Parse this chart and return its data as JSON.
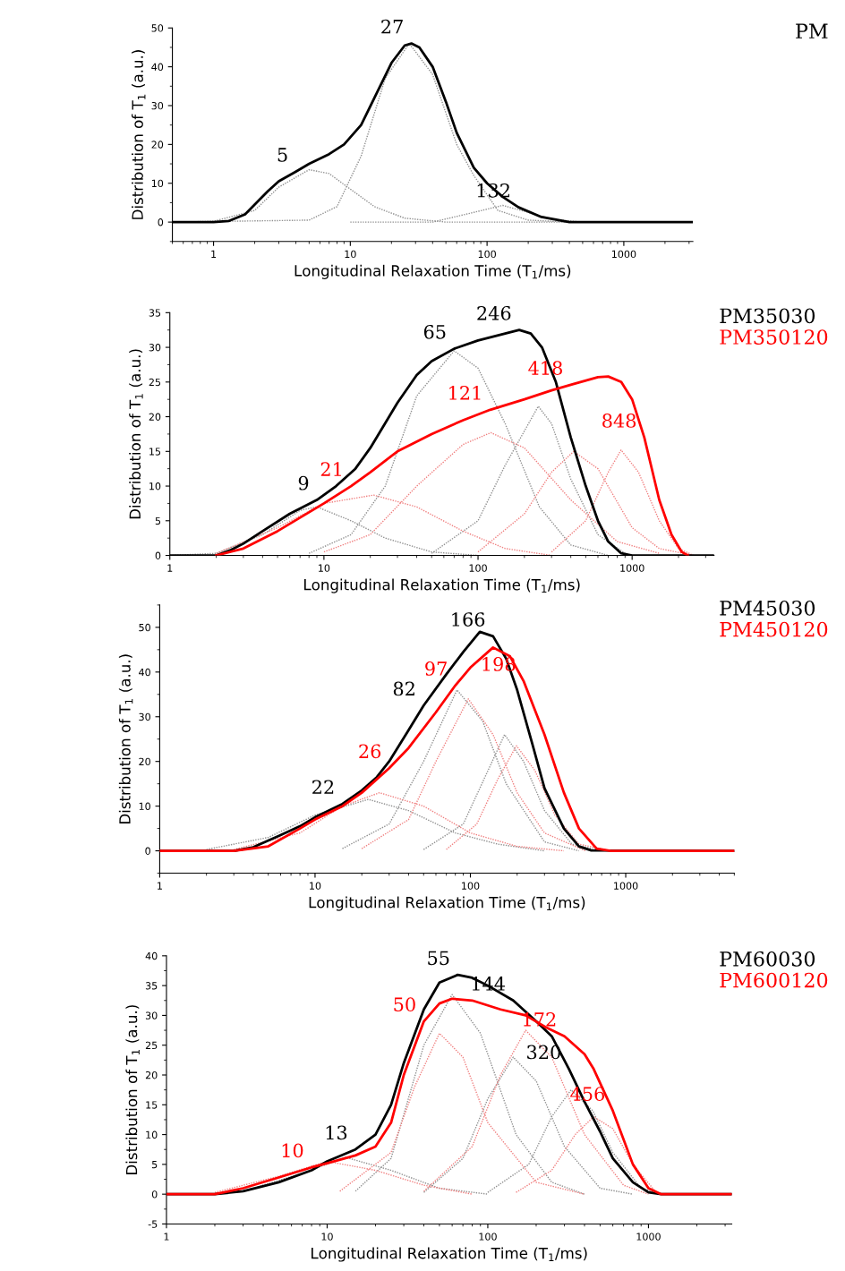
{
  "chart_data": [
    {
      "type": "line",
      "log": "x",
      "xlabel": "Longitudinal Relaxation Time (T$_{1}$/ms)",
      "ylabel": "Distribution of T$_{1}$ (a.u.)",
      "xlim": [
        0.5,
        3200
      ],
      "ylim": [
        -5,
        50
      ],
      "xticks": [
        1,
        10,
        100,
        1000
      ],
      "yticks": [
        0,
        10,
        20,
        30,
        40,
        50
      ],
      "legend": "top right",
      "series": [
        {
          "name": "PM",
          "color": "#000000",
          "line_style": "solid",
          "x": [
            0.5,
            1,
            1.3,
            1.7,
            2,
            2.5,
            3,
            4,
            5,
            7,
            9,
            12,
            15,
            20,
            25,
            28,
            32,
            40,
            50,
            60,
            80,
            100,
            130,
            170,
            250,
            400,
            3200
          ],
          "values": [
            0,
            0,
            0.3,
            2,
            4.5,
            8,
            10.5,
            13,
            15,
            17.5,
            20,
            25,
            32,
            41,
            45.5,
            46,
            45,
            40,
            31,
            23,
            14,
            10,
            6.5,
            3.8,
            1.3,
            0,
            0
          ]
        },
        {
          "color": "#909090",
          "line_style": "dotted",
          "x": [
            0.5,
            1,
            2,
            3,
            5,
            7,
            10,
            15,
            25,
            50,
            400
          ],
          "values": [
            0,
            0.2,
            3,
            9,
            13.5,
            12.5,
            8.5,
            4,
            1,
            0,
            0
          ]
        },
        {
          "color": "#909090",
          "line_style": "dotted",
          "x": [
            0.5,
            5,
            8,
            12,
            18,
            27,
            40,
            60,
            80,
            120,
            200,
            400
          ],
          "values": [
            0,
            0.5,
            4,
            17,
            37,
            46,
            38,
            20,
            12,
            3,
            0.5,
            0
          ]
        },
        {
          "color": "#909090",
          "line_style": "dotted",
          "x": [
            10,
            40,
            80,
            130,
            200,
            300,
            500
          ],
          "values": [
            0,
            0,
            2.5,
            4.3,
            2.5,
            0.7,
            0
          ]
        }
      ],
      "annotations": [
        {
          "text": "5",
          "x": 4,
          "y": 13
        },
        {
          "text": "27",
          "x": 28,
          "y": 46
        },
        {
          "text": "132",
          "x": 170,
          "y": 3.8
        }
      ]
    },
    {
      "type": "line",
      "log": "x",
      "xlabel": "Longitudinal Relaxation Time (T$_{1}$/ms)",
      "ylabel": "Distribution of T$_{1}$ (a.u.)",
      "xlim": [
        1,
        3400
      ],
      "ylim": [
        0,
        35
      ],
      "xticks": [
        1,
        10,
        100,
        1000
      ],
      "yticks": [
        0,
        5,
        10,
        15,
        20,
        25,
        30,
        35
      ],
      "legend": "top right",
      "series": [
        {
          "name": "PM35030",
          "color": "#000000",
          "line_style": "solid",
          "x": [
            1,
            2,
            2.5,
            3,
            4,
            6,
            9,
            12,
            16,
            20,
            30,
            40,
            50,
            70,
            100,
            150,
            185,
            220,
            260,
            320,
            400,
            500,
            600,
            700,
            850,
            1000,
            3400
          ],
          "values": [
            0,
            0,
            0.8,
            1.7,
            3.5,
            6,
            8,
            10,
            12.5,
            15.5,
            22,
            26,
            28,
            29.8,
            31,
            32,
            32.5,
            32,
            30,
            25,
            17,
            10,
            5,
            2,
            0.3,
            0,
            0
          ]
        },
        {
          "name": "PM350120",
          "color": "#ff0000",
          "line_style": "solid",
          "x": [
            2,
            3,
            5,
            10,
            15,
            20,
            30,
            50,
            80,
            120,
            200,
            300,
            400,
            600,
            700,
            850,
            1000,
            1200,
            1500,
            1800,
            2100,
            2300
          ],
          "values": [
            0,
            1,
            3.5,
            7.5,
            10,
            12,
            15,
            17.5,
            19.5,
            21,
            22.5,
            23.8,
            24.6,
            25.7,
            25.8,
            25,
            22.5,
            17,
            8,
            3,
            0.5,
            0
          ]
        },
        {
          "color": "#909090",
          "line_style": "dotted",
          "x": [
            1,
            2,
            4,
            7,
            9,
            15,
            25,
            50,
            100
          ],
          "values": [
            0,
            0.3,
            3,
            6.5,
            7,
            5,
            2.5,
            0.5,
            0
          ]
        },
        {
          "color": "#909090",
          "line_style": "dotted",
          "x": [
            8,
            15,
            25,
            40,
            70,
            100,
            150,
            250,
            400,
            700
          ],
          "values": [
            0.3,
            3,
            10,
            23,
            29.5,
            27,
            19,
            7,
            1.5,
            0
          ]
        },
        {
          "color": "#909090",
          "line_style": "dotted",
          "x": [
            50,
            100,
            150,
            246,
            300,
            400,
            600,
            900
          ],
          "values": [
            0.3,
            5,
            13,
            21.5,
            19,
            11,
            3,
            0.3
          ]
        },
        {
          "color": "#f08080",
          "line_style": "dotted",
          "x": [
            2,
            5,
            10,
            21,
            40,
            80,
            150,
            300
          ],
          "values": [
            0.3,
            4,
            7.5,
            8.7,
            7,
            3.5,
            1,
            0
          ]
        },
        {
          "color": "#f08080",
          "line_style": "dotted",
          "x": [
            10,
            20,
            40,
            80,
            121,
            200,
            400,
            800,
            1500
          ],
          "values": [
            0.5,
            3,
            10,
            16,
            17.7,
            15.5,
            8,
            2,
            0.3
          ]
        },
        {
          "color": "#f08080",
          "line_style": "dotted",
          "x": [
            100,
            200,
            300,
            418,
            600,
            1000,
            1500,
            2500
          ],
          "values": [
            0.5,
            6,
            12,
            15,
            12.5,
            4,
            1,
            0
          ]
        },
        {
          "color": "#f08080",
          "line_style": "dotted",
          "x": [
            300,
            500,
            700,
            848,
            1100,
            1500,
            2000,
            2500
          ],
          "values": [
            0.5,
            5,
            12,
            15.2,
            12,
            5,
            1,
            0
          ]
        }
      ],
      "annotations": [
        {
          "text": "9",
          "x": 9,
          "y": 8
        },
        {
          "text": "65",
          "x": 70,
          "y": 29.8
        },
        {
          "text": "246",
          "x": 185,
          "y": 32.5
        },
        {
          "text": "21",
          "x": 15,
          "y": 10
        },
        {
          "text": "121",
          "x": 120,
          "y": 21
        },
        {
          "text": "418",
          "x": 400,
          "y": 24.6
        },
        {
          "text": "848",
          "x": 1200,
          "y": 17
        }
      ]
    },
    {
      "type": "line",
      "log": "x",
      "xlabel": "Longitudinal Relaxation Time (T$_{1}$/ms)",
      "ylabel": "Distribution of T$_{1}$ (a.u.)",
      "xlim": [
        1,
        5000
      ],
      "ylim": [
        -5,
        55
      ],
      "xticks": [
        1,
        10,
        100,
        1000
      ],
      "yticks": [
        0,
        10,
        20,
        30,
        40,
        50
      ],
      "legend": "top right",
      "series": [
        {
          "name": "PM45030",
          "color": "#000000",
          "line_style": "solid",
          "x": [
            1,
            3,
            4,
            6,
            8,
            10,
            15,
            20,
            25,
            30,
            40,
            50,
            70,
            90,
            115,
            140,
            170,
            200,
            250,
            300,
            400,
            500,
            600,
            5000
          ],
          "values": [
            0,
            0,
            0.8,
            3.5,
            5.5,
            7.5,
            10.5,
            13.5,
            16.5,
            20,
            27,
            32.5,
            39.5,
            44.5,
            49,
            48,
            43,
            36,
            24,
            14,
            5,
            1,
            0.1,
            0
          ]
        },
        {
          "name": "PM450120",
          "color": "#ff0000",
          "line_style": "solid",
          "x": [
            1,
            3,
            5,
            8,
            10,
            15,
            20,
            30,
            40,
            60,
            80,
            100,
            140,
            180,
            220,
            300,
            400,
            500,
            650,
            800,
            5000
          ],
          "values": [
            0,
            0,
            1,
            5,
            7,
            10,
            13,
            18.5,
            23,
            31,
            37,
            41,
            45.5,
            43.5,
            38,
            26,
            13,
            5,
            0.5,
            0,
            0
          ]
        },
        {
          "color": "#909090",
          "line_style": "dotted",
          "x": [
            2,
            5,
            10,
            22,
            40,
            80,
            150,
            300
          ],
          "values": [
            0.3,
            3,
            8,
            11.5,
            9,
            4,
            1.5,
            0
          ]
        },
        {
          "color": "#909090",
          "line_style": "dotted",
          "x": [
            15,
            30,
            50,
            82,
            120,
            170,
            300,
            500
          ],
          "values": [
            0.5,
            6,
            20,
            36,
            29,
            15,
            2,
            0
          ]
        },
        {
          "color": "#909090",
          "line_style": "dotted",
          "x": [
            50,
            90,
            130,
            166,
            220,
            300,
            450,
            700
          ],
          "values": [
            0.3,
            6,
            18,
            26,
            20,
            9,
            1.5,
            0
          ]
        },
        {
          "color": "#f08080",
          "line_style": "dotted",
          "x": [
            3,
            8,
            15,
            26,
            50,
            100,
            200,
            400
          ],
          "values": [
            0.3,
            4,
            10,
            13,
            10,
            4,
            1,
            0
          ]
        },
        {
          "color": "#f08080",
          "line_style": "dotted",
          "x": [
            20,
            40,
            60,
            97,
            140,
            200,
            300,
            550
          ],
          "values": [
            0.5,
            7,
            20,
            34,
            26,
            13,
            4,
            0
          ]
        },
        {
          "color": "#f08080",
          "line_style": "dotted",
          "x": [
            70,
            110,
            150,
            198,
            260,
            350,
            500,
            800
          ],
          "values": [
            0.3,
            6,
            16,
            23.5,
            18,
            8,
            1.5,
            0
          ]
        }
      ],
      "annotations": [
        {
          "text": "22",
          "x": 15,
          "y": 10.5
        },
        {
          "text": "82",
          "x": 50,
          "y": 32.5
        },
        {
          "text": "166",
          "x": 140,
          "y": 48
        },
        {
          "text": "26",
          "x": 30,
          "y": 18.5
        },
        {
          "text": "97",
          "x": 80,
          "y": 37
        },
        {
          "text": "198",
          "x": 220,
          "y": 38
        }
      ]
    },
    {
      "type": "line",
      "log": "x",
      "xlabel": "Longitudinal Relaxation Time (T$_{1}$/ms)",
      "ylabel": "Distribution of T$_{1}$ (a.u.)",
      "xlim": [
        1,
        3300
      ],
      "ylim": [
        -5,
        40
      ],
      "xticks": [
        1,
        10,
        100,
        1000
      ],
      "yticks": [
        -5,
        0,
        5,
        10,
        15,
        20,
        25,
        30,
        35,
        40
      ],
      "legend": "top right",
      "series": [
        {
          "name": "PM60030",
          "color": "#000000",
          "line_style": "solid",
          "x": [
            1,
            2,
            3,
            5,
            8,
            10,
            15,
            20,
            25,
            30,
            40,
            50,
            65,
            80,
            100,
            144,
            200,
            250,
            320,
            400,
            500,
            600,
            800,
            1000,
            1200,
            3300
          ],
          "values": [
            0,
            0,
            0.5,
            2,
            4,
            5.5,
            7.5,
            10,
            15,
            22,
            31,
            35.5,
            36.8,
            36.3,
            35,
            32.5,
            29,
            26.5,
            21,
            15.5,
            10.5,
            6,
            2,
            0.3,
            0,
            0
          ]
        },
        {
          "name": "PM600120",
          "color": "#ff0000",
          "line_style": "solid",
          "x": [
            1,
            2,
            3,
            5,
            8,
            10,
            15,
            20,
            25,
            30,
            40,
            50,
            60,
            80,
            120,
            172,
            230,
            300,
            400,
            456,
            600,
            800,
            1000,
            1200,
            3300
          ],
          "values": [
            0,
            0,
            1,
            2.8,
            4.5,
            5.2,
            6.5,
            8,
            12,
            20,
            29,
            32,
            32.8,
            32.5,
            31,
            30,
            28,
            26.5,
            23.5,
            21,
            14,
            5,
            1,
            0,
            0
          ]
        },
        {
          "color": "#909090",
          "line_style": "dotted",
          "x": [
            3,
            7,
            13,
            25,
            50,
            100
          ],
          "values": [
            0.5,
            3.5,
            6.2,
            4,
            1,
            0
          ]
        },
        {
          "color": "#909090",
          "line_style": "dotted",
          "x": [
            15,
            25,
            40,
            60,
            90,
            150,
            250,
            400
          ],
          "values": [
            0.5,
            6,
            25,
            33.5,
            27,
            10,
            2,
            0
          ]
        },
        {
          "color": "#909090",
          "line_style": "dotted",
          "x": [
            40,
            70,
            100,
            144,
            200,
            300,
            500,
            800
          ],
          "values": [
            0.3,
            6,
            16,
            23,
            19,
            8,
            1,
            0
          ]
        },
        {
          "color": "#909090",
          "line_style": "dotted",
          "x": [
            100,
            180,
            250,
            330,
            450,
            600,
            900,
            1200
          ],
          "values": [
            0.3,
            5,
            13,
            17.5,
            14,
            7,
            1,
            0
          ]
        },
        {
          "color": "#f08080",
          "line_style": "dotted",
          "x": [
            2,
            5,
            10,
            20,
            40,
            80
          ],
          "values": [
            0.3,
            3,
            5.5,
            4,
            1.5,
            0
          ]
        },
        {
          "color": "#f08080",
          "line_style": "dotted",
          "x": [
            12,
            25,
            35,
            50,
            70,
            100,
            200,
            400
          ],
          "values": [
            0.5,
            7,
            18,
            27,
            23,
            12,
            2,
            0
          ]
        },
        {
          "color": "#f08080",
          "line_style": "dotted",
          "x": [
            40,
            80,
            120,
            172,
            250,
            400,
            700,
            1000
          ],
          "values": [
            0.5,
            8,
            20,
            27.5,
            23,
            10,
            1.5,
            0
          ]
        },
        {
          "color": "#f08080",
          "line_style": "dotted",
          "x": [
            150,
            250,
            350,
            456,
            600,
            800,
            1100
          ],
          "values": [
            0.3,
            4,
            10,
            13,
            11,
            5,
            0.5
          ]
        }
      ],
      "annotations": [
        {
          "text": "13",
          "x": 15,
          "y": 7.5
        },
        {
          "text": "55",
          "x": 65,
          "y": 36.8
        },
        {
          "text": "144",
          "x": 144,
          "y": 32.5
        },
        {
          "text": "320",
          "x": 320,
          "y": 21
        },
        {
          "text": "10",
          "x": 8,
          "y": 4.5
        },
        {
          "text": "50",
          "x": 40,
          "y": 29
        },
        {
          "text": "172",
          "x": 300,
          "y": 26.5
        },
        {
          "text": "456",
          "x": 600,
          "y": 14
        }
      ]
    }
  ]
}
